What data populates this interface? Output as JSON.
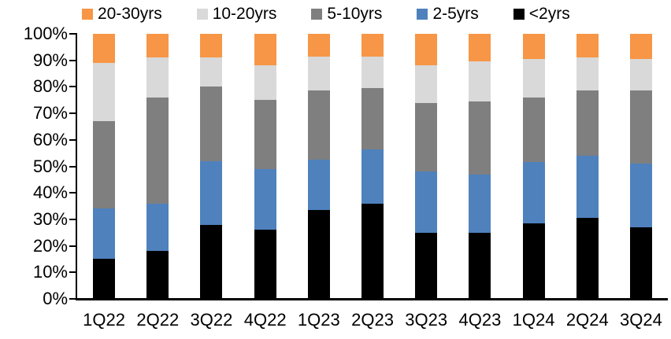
{
  "chart_data": {
    "type": "bar",
    "variant": "stacked-100-percent",
    "title": "",
    "categories": [
      "1Q22",
      "2Q22",
      "3Q22",
      "4Q22",
      "1Q23",
      "2Q23",
      "3Q23",
      "4Q23",
      "1Q24",
      "2Q24",
      "3Q24"
    ],
    "series": [
      {
        "name": "<2yrs",
        "color": "#000000",
        "values": [
          15,
          18,
          28,
          26,
          33.5,
          36,
          25,
          25,
          28.5,
          30.5,
          27
        ]
      },
      {
        "name": "2-5yrs",
        "color": "#4F81BD",
        "values": [
          19,
          18,
          24,
          23,
          19,
          20.5,
          23,
          22,
          23,
          23.5,
          24
        ]
      },
      {
        "name": "5-10yrs",
        "color": "#7F7F7F",
        "values": [
          33,
          40,
          28,
          26,
          26,
          23,
          26,
          27.5,
          24.5,
          24.5,
          27.5
        ]
      },
      {
        "name": "10-20yrs",
        "color": "#D9D9D9",
        "values": [
          22,
          15,
          11,
          13,
          13,
          12,
          14,
          15,
          14.5,
          12.5,
          12
        ]
      },
      {
        "name": "20-30yrs",
        "color": "#F79646",
        "values": [
          11,
          9,
          9,
          12,
          8.5,
          8.5,
          12,
          10.5,
          9.5,
          9,
          9.5
        ]
      }
    ],
    "legend": {
      "position": "top",
      "order": [
        "20-30yrs",
        "10-20yrs",
        "5-10yrs",
        "2-5yrs",
        "<2yrs"
      ]
    },
    "y_axis": {
      "min": 0,
      "max": 100,
      "tick_step": 10,
      "tick_labels": [
        "0%",
        "10%",
        "20%",
        "30%",
        "40%",
        "50%",
        "60%",
        "70%",
        "80%",
        "90%",
        "100%"
      ]
    },
    "x_axis": {
      "label": ""
    },
    "grid": false,
    "axis_color": "#000000",
    "background_color": "#FFFFFF"
  }
}
